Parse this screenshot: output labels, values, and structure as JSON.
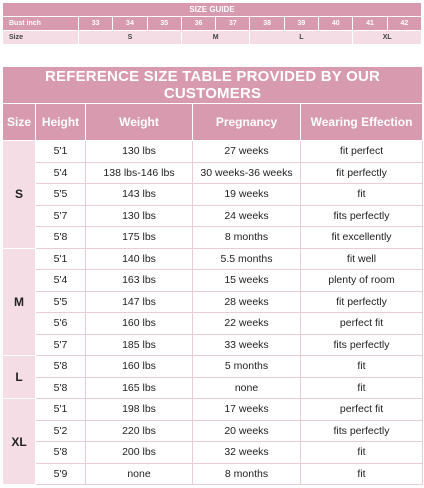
{
  "size_guide": {
    "title": "SIZE GUIDE",
    "bust_label": "Bust inch",
    "bust_values": [
      "33",
      "34",
      "35",
      "36",
      "37",
      "38",
      "39",
      "40",
      "41",
      "42"
    ],
    "size_label": "Size",
    "size_values": [
      "S",
      "M",
      "L",
      "XL"
    ]
  },
  "reference": {
    "title": "REFERENCE SIZE TABLE PROVIDED BY OUR CUSTOMERS",
    "headers": [
      "Size",
      "Height",
      "Weight",
      "Pregnancy",
      "Wearing Effection"
    ],
    "groups": [
      {
        "size": "S",
        "rows": [
          [
            "5'1",
            "130 lbs",
            "27 weeks",
            "fit perfect"
          ],
          [
            "5'4",
            "138 lbs-146 lbs",
            "30 weeks-36 weeks",
            "fit perfectly"
          ],
          [
            "5'5",
            "143 lbs",
            "19 weeks",
            "fit"
          ],
          [
            "5'7",
            "130 lbs",
            "24 weeks",
            "fits perfectly"
          ],
          [
            "5'8",
            "175 lbs",
            "8 months",
            "fit excellently"
          ]
        ]
      },
      {
        "size": "M",
        "rows": [
          [
            "5'1",
            "140 lbs",
            "5.5 months",
            "fit well"
          ],
          [
            "5'4",
            "163 lbs",
            "15 weeks",
            "plenty of room"
          ],
          [
            "5'5",
            "147 lbs",
            "28 weeks",
            "fit perfectly"
          ],
          [
            "5'6",
            "160 lbs",
            "22 weeks",
            "perfect fit"
          ],
          [
            "5'7",
            "185 lbs",
            "33 weeks",
            "fits perfectly"
          ]
        ]
      },
      {
        "size": "L",
        "rows": [
          [
            "5'8",
            "160 lbs",
            "5 months",
            "fit"
          ],
          [
            "5'8",
            "165 lbs",
            "none",
            "fit"
          ]
        ]
      },
      {
        "size": "XL",
        "rows": [
          [
            "5'1",
            "198 lbs",
            "17 weeks",
            "perfect fit"
          ],
          [
            "5'2",
            "220 lbs",
            "20 weeks",
            "fits perfectly"
          ],
          [
            "5'8",
            "200 lbs",
            "32 weeks",
            "fit"
          ],
          [
            "5'9",
            "none",
            "8 months",
            "fit"
          ]
        ]
      }
    ]
  }
}
